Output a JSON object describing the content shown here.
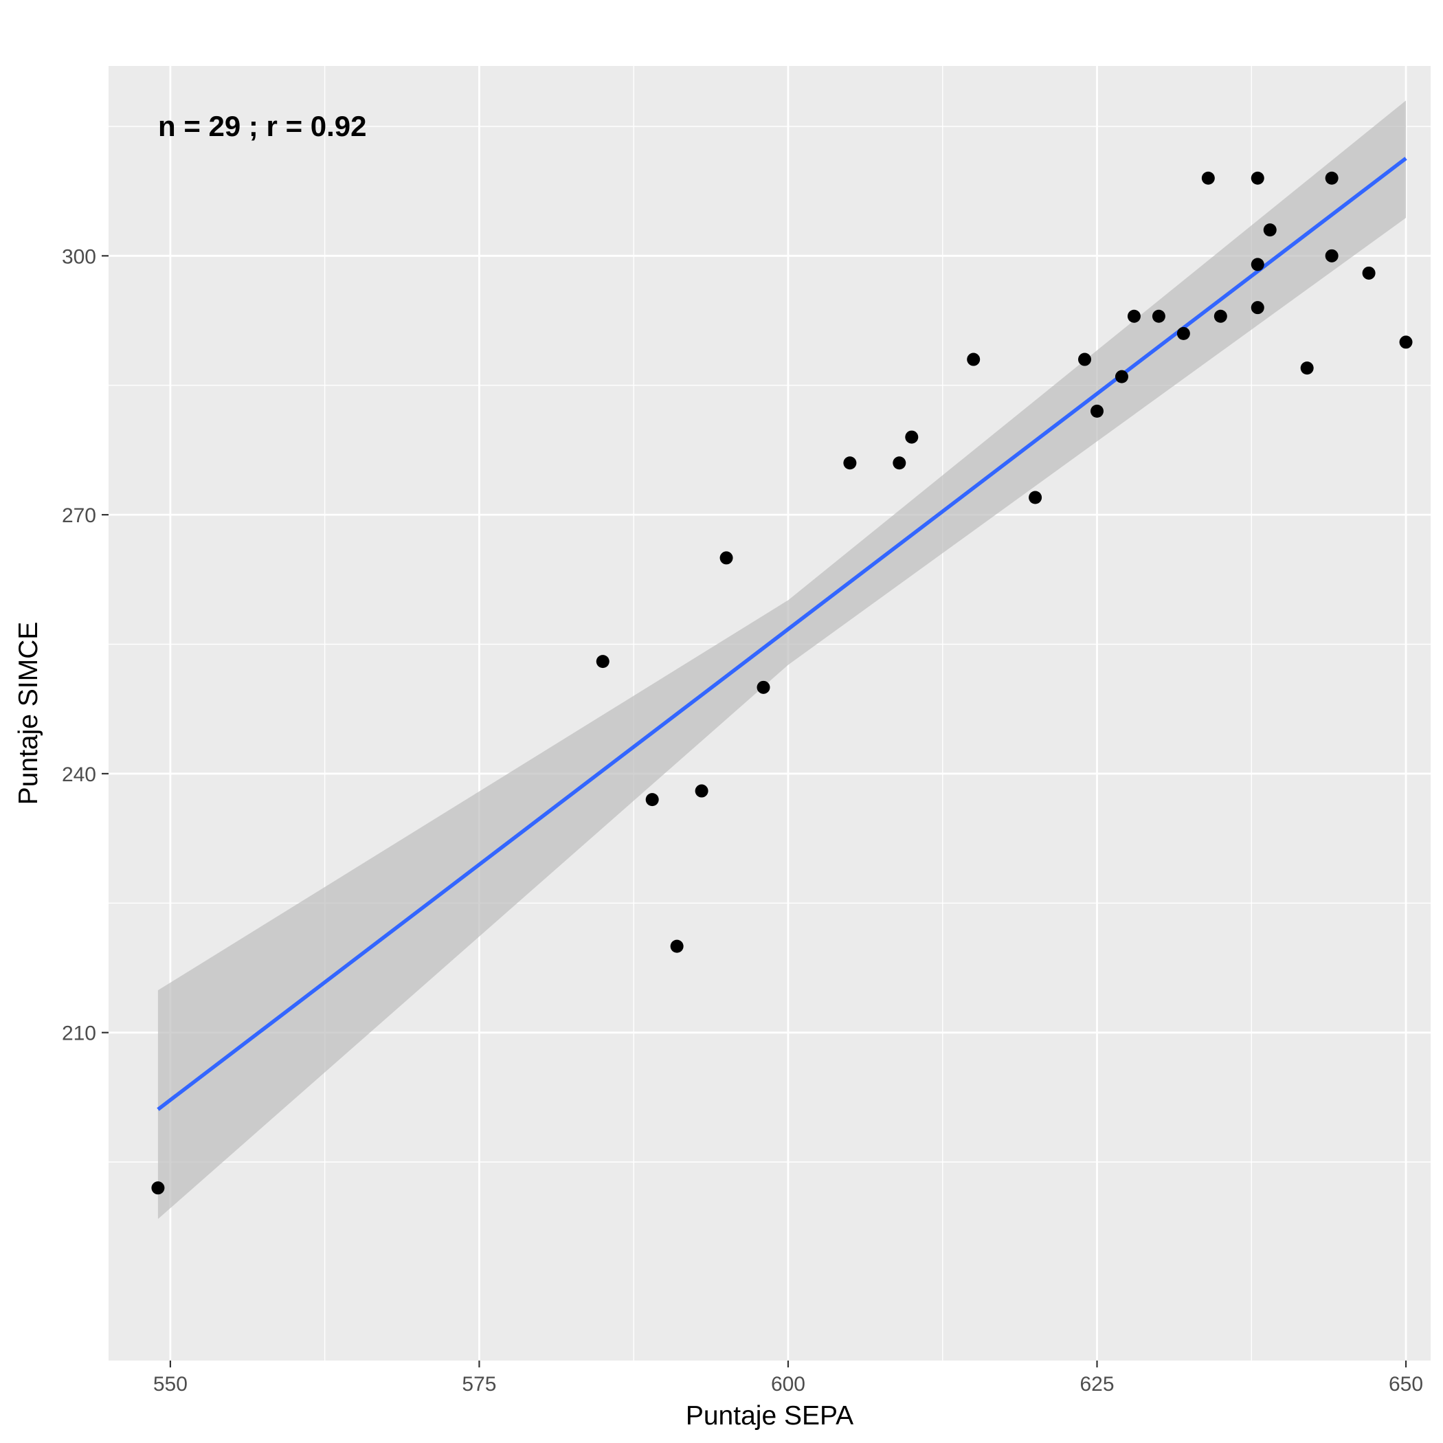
{
  "chart_data": {
    "type": "scatter",
    "title": "",
    "xlabel": "Puntaje SEPA",
    "ylabel": "Puntaje SIMCE",
    "annotation": "n = 29 ;  r = 0.92",
    "xlim": [
      545,
      652
    ],
    "ylim": [
      172,
      322
    ],
    "x_ticks": [
      550,
      575,
      600,
      625,
      650
    ],
    "y_ticks": [
      210,
      240,
      270,
      300
    ],
    "grid": true,
    "legend": "none",
    "colors": {
      "panel": "#ebebeb",
      "grid": "#ffffff",
      "points": "#000000",
      "fit_line": "#3366ff",
      "ribbon": "#bebebe"
    },
    "series": [
      {
        "points": [
          {
            "x": 549,
            "y": 192
          },
          {
            "x": 585,
            "y": 253
          },
          {
            "x": 589,
            "y": 237
          },
          {
            "x": 591,
            "y": 220
          },
          {
            "x": 593,
            "y": 238
          },
          {
            "x": 595,
            "y": 265
          },
          {
            "x": 598,
            "y": 250
          },
          {
            "x": 605,
            "y": 276
          },
          {
            "x": 609,
            "y": 276
          },
          {
            "x": 610,
            "y": 279
          },
          {
            "x": 615,
            "y": 288
          },
          {
            "x": 620,
            "y": 272
          },
          {
            "x": 624,
            "y": 288
          },
          {
            "x": 625,
            "y": 282
          },
          {
            "x": 627,
            "y": 286
          },
          {
            "x": 628,
            "y": 293
          },
          {
            "x": 630,
            "y": 293
          },
          {
            "x": 632,
            "y": 291
          },
          {
            "x": 634,
            "y": 309
          },
          {
            "x": 635,
            "y": 293
          },
          {
            "x": 638,
            "y": 309
          },
          {
            "x": 638,
            "y": 299
          },
          {
            "x": 638,
            "y": 294
          },
          {
            "x": 639,
            "y": 303
          },
          {
            "x": 642,
            "y": 287
          },
          {
            "x": 644,
            "y": 309
          },
          {
            "x": 644,
            "y": 300
          },
          {
            "x": 647,
            "y": 298
          },
          {
            "x": 650,
            "y": 290
          }
        ]
      }
    ],
    "fit": {
      "x": [
        549,
        650
      ],
      "y": [
        201.1,
        311.3
      ]
    },
    "confidence_band": {
      "x": [
        549,
        600,
        650
      ],
      "lower": [
        188.4,
        252.6,
        304.4
      ],
      "upper": [
        214.9,
        260.1,
        318.0
      ]
    }
  }
}
